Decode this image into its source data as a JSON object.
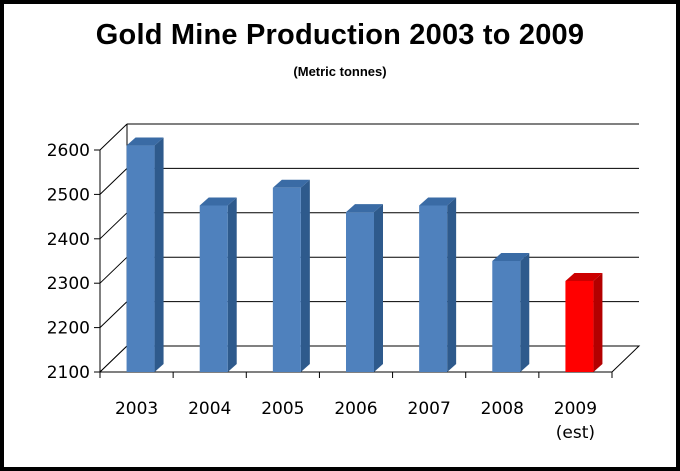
{
  "chart_data": {
    "type": "bar",
    "title": "Gold Mine Production 2003 to 2009",
    "subtitle": "(Metric tonnes)",
    "categories": [
      "2003",
      "2004",
      "2005",
      "2006",
      "2007",
      "2008",
      "2009\n(est)"
    ],
    "values": [
      2610,
      2475,
      2515,
      2460,
      2475,
      2350,
      2305
    ],
    "ylim": [
      2100,
      2600
    ],
    "yticks": [
      2100,
      2200,
      2300,
      2400,
      2500,
      2600
    ],
    "grid": true,
    "bar_colors": [
      "#4F81BD",
      "#4F81BD",
      "#4F81BD",
      "#4F81BD",
      "#4F81BD",
      "#4F81BD",
      "#FF0000"
    ],
    "bar_side_colors": [
      "#2E5A8C",
      "#2E5A8C",
      "#2E5A8C",
      "#2E5A8C",
      "#2E5A8C",
      "#2E5A8C",
      "#B30000"
    ],
    "bar_top_colors": [
      "#3A6BA5",
      "#3A6BA5",
      "#3A6BA5",
      "#3A6BA5",
      "#3A6BA5",
      "#3A6BA5",
      "#CC0000"
    ]
  }
}
